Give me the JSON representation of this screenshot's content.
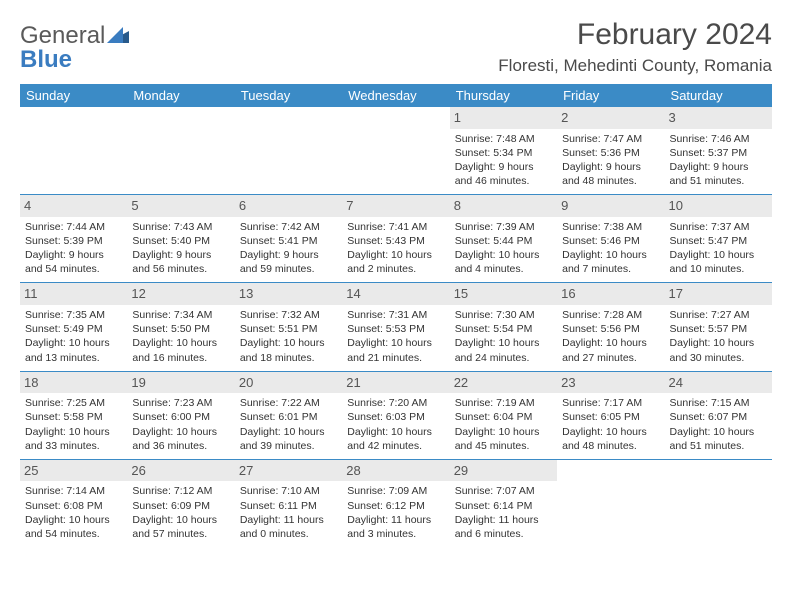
{
  "brand": {
    "part1": "General",
    "part2": "Blue"
  },
  "title": "February 2024",
  "location": "Floresti, Mehedinti County, Romania",
  "colors": {
    "header_bg": "#3b8bc6",
    "header_text": "#ffffff",
    "daynum_bg": "#eaeaea",
    "text": "#333333",
    "brand_gray": "#5a5a5a",
    "brand_blue": "#3a7cc0"
  },
  "day_headers": [
    "Sunday",
    "Monday",
    "Tuesday",
    "Wednesday",
    "Thursday",
    "Friday",
    "Saturday"
  ],
  "weeks": [
    [
      null,
      null,
      null,
      null,
      {
        "n": "1",
        "sr": "Sunrise: 7:48 AM",
        "ss": "Sunset: 5:34 PM",
        "d1": "Daylight: 9 hours",
        "d2": "and 46 minutes."
      },
      {
        "n": "2",
        "sr": "Sunrise: 7:47 AM",
        "ss": "Sunset: 5:36 PM",
        "d1": "Daylight: 9 hours",
        "d2": "and 48 minutes."
      },
      {
        "n": "3",
        "sr": "Sunrise: 7:46 AM",
        "ss": "Sunset: 5:37 PM",
        "d1": "Daylight: 9 hours",
        "d2": "and 51 minutes."
      }
    ],
    [
      {
        "n": "4",
        "sr": "Sunrise: 7:44 AM",
        "ss": "Sunset: 5:39 PM",
        "d1": "Daylight: 9 hours",
        "d2": "and 54 minutes."
      },
      {
        "n": "5",
        "sr": "Sunrise: 7:43 AM",
        "ss": "Sunset: 5:40 PM",
        "d1": "Daylight: 9 hours",
        "d2": "and 56 minutes."
      },
      {
        "n": "6",
        "sr": "Sunrise: 7:42 AM",
        "ss": "Sunset: 5:41 PM",
        "d1": "Daylight: 9 hours",
        "d2": "and 59 minutes."
      },
      {
        "n": "7",
        "sr": "Sunrise: 7:41 AM",
        "ss": "Sunset: 5:43 PM",
        "d1": "Daylight: 10 hours",
        "d2": "and 2 minutes."
      },
      {
        "n": "8",
        "sr": "Sunrise: 7:39 AM",
        "ss": "Sunset: 5:44 PM",
        "d1": "Daylight: 10 hours",
        "d2": "and 4 minutes."
      },
      {
        "n": "9",
        "sr": "Sunrise: 7:38 AM",
        "ss": "Sunset: 5:46 PM",
        "d1": "Daylight: 10 hours",
        "d2": "and 7 minutes."
      },
      {
        "n": "10",
        "sr": "Sunrise: 7:37 AM",
        "ss": "Sunset: 5:47 PM",
        "d1": "Daylight: 10 hours",
        "d2": "and 10 minutes."
      }
    ],
    [
      {
        "n": "11",
        "sr": "Sunrise: 7:35 AM",
        "ss": "Sunset: 5:49 PM",
        "d1": "Daylight: 10 hours",
        "d2": "and 13 minutes."
      },
      {
        "n": "12",
        "sr": "Sunrise: 7:34 AM",
        "ss": "Sunset: 5:50 PM",
        "d1": "Daylight: 10 hours",
        "d2": "and 16 minutes."
      },
      {
        "n": "13",
        "sr": "Sunrise: 7:32 AM",
        "ss": "Sunset: 5:51 PM",
        "d1": "Daylight: 10 hours",
        "d2": "and 18 minutes."
      },
      {
        "n": "14",
        "sr": "Sunrise: 7:31 AM",
        "ss": "Sunset: 5:53 PM",
        "d1": "Daylight: 10 hours",
        "d2": "and 21 minutes."
      },
      {
        "n": "15",
        "sr": "Sunrise: 7:30 AM",
        "ss": "Sunset: 5:54 PM",
        "d1": "Daylight: 10 hours",
        "d2": "and 24 minutes."
      },
      {
        "n": "16",
        "sr": "Sunrise: 7:28 AM",
        "ss": "Sunset: 5:56 PM",
        "d1": "Daylight: 10 hours",
        "d2": "and 27 minutes."
      },
      {
        "n": "17",
        "sr": "Sunrise: 7:27 AM",
        "ss": "Sunset: 5:57 PM",
        "d1": "Daylight: 10 hours",
        "d2": "and 30 minutes."
      }
    ],
    [
      {
        "n": "18",
        "sr": "Sunrise: 7:25 AM",
        "ss": "Sunset: 5:58 PM",
        "d1": "Daylight: 10 hours",
        "d2": "and 33 minutes."
      },
      {
        "n": "19",
        "sr": "Sunrise: 7:23 AM",
        "ss": "Sunset: 6:00 PM",
        "d1": "Daylight: 10 hours",
        "d2": "and 36 minutes."
      },
      {
        "n": "20",
        "sr": "Sunrise: 7:22 AM",
        "ss": "Sunset: 6:01 PM",
        "d1": "Daylight: 10 hours",
        "d2": "and 39 minutes."
      },
      {
        "n": "21",
        "sr": "Sunrise: 7:20 AM",
        "ss": "Sunset: 6:03 PM",
        "d1": "Daylight: 10 hours",
        "d2": "and 42 minutes."
      },
      {
        "n": "22",
        "sr": "Sunrise: 7:19 AM",
        "ss": "Sunset: 6:04 PM",
        "d1": "Daylight: 10 hours",
        "d2": "and 45 minutes."
      },
      {
        "n": "23",
        "sr": "Sunrise: 7:17 AM",
        "ss": "Sunset: 6:05 PM",
        "d1": "Daylight: 10 hours",
        "d2": "and 48 minutes."
      },
      {
        "n": "24",
        "sr": "Sunrise: 7:15 AM",
        "ss": "Sunset: 6:07 PM",
        "d1": "Daylight: 10 hours",
        "d2": "and 51 minutes."
      }
    ],
    [
      {
        "n": "25",
        "sr": "Sunrise: 7:14 AM",
        "ss": "Sunset: 6:08 PM",
        "d1": "Daylight: 10 hours",
        "d2": "and 54 minutes."
      },
      {
        "n": "26",
        "sr": "Sunrise: 7:12 AM",
        "ss": "Sunset: 6:09 PM",
        "d1": "Daylight: 10 hours",
        "d2": "and 57 minutes."
      },
      {
        "n": "27",
        "sr": "Sunrise: 7:10 AM",
        "ss": "Sunset: 6:11 PM",
        "d1": "Daylight: 11 hours",
        "d2": "and 0 minutes."
      },
      {
        "n": "28",
        "sr": "Sunrise: 7:09 AM",
        "ss": "Sunset: 6:12 PM",
        "d1": "Daylight: 11 hours",
        "d2": "and 3 minutes."
      },
      {
        "n": "29",
        "sr": "Sunrise: 7:07 AM",
        "ss": "Sunset: 6:14 PM",
        "d1": "Daylight: 11 hours",
        "d2": "and 6 minutes."
      },
      null,
      null
    ]
  ]
}
